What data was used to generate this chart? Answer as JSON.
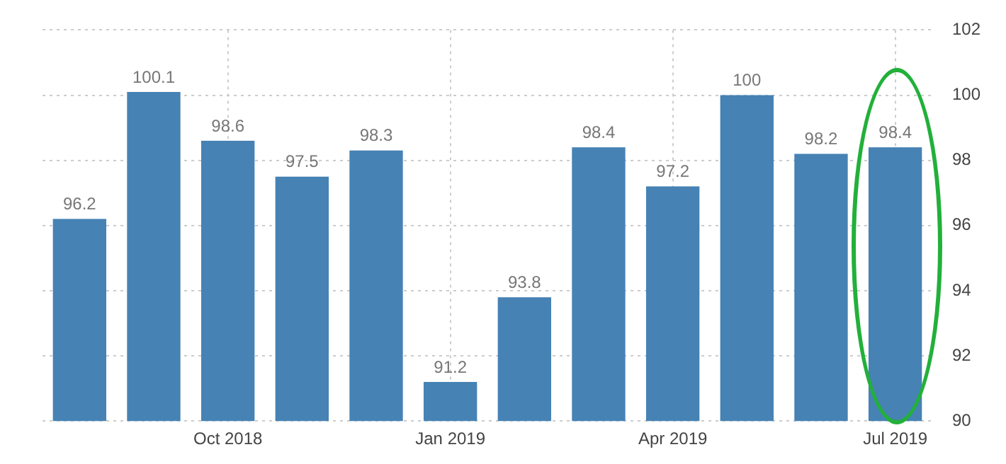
{
  "chart_data": {
    "type": "bar",
    "categories": [
      null,
      null,
      "Oct 2018",
      null,
      null,
      "Jan 2019",
      null,
      null,
      "Apr 2019",
      null,
      null,
      "Jul 2019"
    ],
    "values": [
      96.2,
      100.1,
      98.6,
      97.5,
      98.3,
      91.2,
      93.8,
      98.4,
      97.2,
      100,
      98.2,
      98.4
    ],
    "color": "#4682b4",
    "ylim": [
      90,
      102
    ],
    "yticks": [
      90,
      92,
      94,
      96,
      98,
      100,
      102
    ],
    "grid": true,
    "data_labels": true
  }
}
